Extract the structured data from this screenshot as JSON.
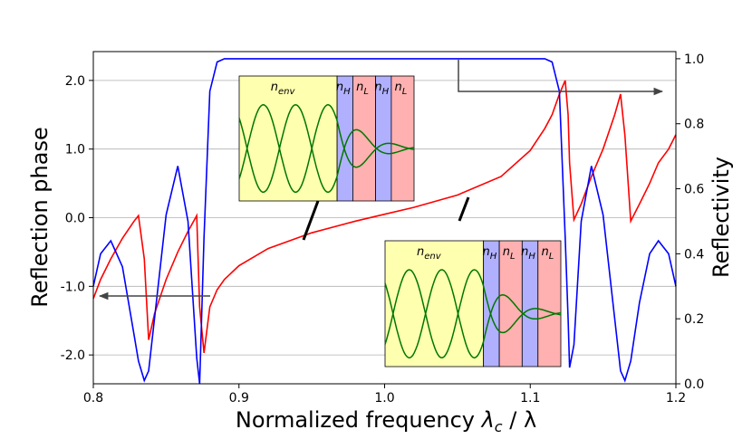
{
  "chart_data": {
    "type": "line",
    "x_label": [
      "Normalized frequency ",
      "λ",
      "c",
      " / λ"
    ],
    "y_label": "Reflection phase",
    "y2_label": "Reflectivity",
    "x": [
      0.8,
      0.805,
      0.812,
      0.82,
      0.828,
      0.831,
      0.835,
      0.838,
      0.842,
      0.85,
      0.858,
      0.865,
      0.871,
      0.873,
      0.876,
      0.88,
      0.885,
      0.89,
      0.9,
      0.92,
      0.95,
      0.98,
      1.0,
      1.02,
      1.05,
      1.08,
      1.1,
      1.11,
      1.115,
      1.12,
      1.124,
      1.126,
      1.127,
      1.13,
      1.135,
      1.142,
      1.15,
      1.158,
      1.162,
      1.165,
      1.169,
      1.175,
      1.182,
      1.188,
      1.195,
      1.2
    ],
    "series": [
      {
        "name": "Reflection phase",
        "color": "#ff0000",
        "axis": "y",
        "values": [
          -1.18,
          -0.9,
          -0.6,
          -0.3,
          -0.05,
          0.03,
          -0.6,
          -1.78,
          -1.4,
          -0.9,
          -0.5,
          -0.2,
          0.03,
          -1.3,
          -1.97,
          -1.3,
          -1.05,
          -0.9,
          -0.7,
          -0.45,
          -0.22,
          -0.05,
          0.05,
          0.15,
          0.33,
          0.6,
          0.98,
          1.3,
          1.5,
          1.8,
          2.0,
          1.5,
          0.8,
          -0.03,
          0.2,
          0.6,
          1.0,
          1.5,
          1.8,
          1.2,
          -0.05,
          0.2,
          0.5,
          0.8,
          1.0,
          1.21
        ]
      },
      {
        "name": "Reflectivity",
        "color": "#0000ff",
        "axis": "y2",
        "values": [
          0.3,
          0.4,
          0.44,
          0.36,
          0.15,
          0.07,
          0.01,
          0.04,
          0.2,
          0.52,
          0.67,
          0.5,
          0.08,
          0.0,
          0.45,
          0.9,
          0.99,
          1.0,
          1.0,
          1.0,
          1.0,
          1.0,
          1.0,
          1.0,
          1.0,
          1.0,
          1.0,
          1.0,
          0.99,
          0.9,
          0.45,
          0.2,
          0.05,
          0.12,
          0.5,
          0.67,
          0.52,
          0.2,
          0.04,
          0.01,
          0.07,
          0.25,
          0.4,
          0.44,
          0.4,
          0.3
        ]
      }
    ],
    "xlim": [
      0.8,
      1.2
    ],
    "xticks": [
      0.8,
      0.9,
      {
        "value": 1,
        "label": "1.0"
      },
      1.1,
      1.2
    ],
    "ylim": [
      -2.42,
      2.42
    ],
    "yticks": [
      {
        "value": -2,
        "label": "-2.0"
      },
      {
        "value": -1,
        "label": "-1.0"
      },
      {
        "value": 0,
        "label": "0.0"
      },
      {
        "value": 1,
        "label": "1.0"
      },
      {
        "value": 2,
        "label": "2.0"
      }
    ],
    "y2lim": [
      0,
      1.022
    ],
    "y2ticks": [
      {
        "value": 0,
        "label": "0.0"
      },
      0.2,
      0.4,
      0.6,
      0.8,
      {
        "value": 1,
        "label": "1.0"
      }
    ],
    "grid": true,
    "insets": [
      {
        "layers": [
          {
            "symbol": "n",
            "sub": "env"
          },
          {
            "symbol": "n",
            "sub": "H"
          },
          {
            "symbol": "n",
            "sub": "L"
          },
          {
            "symbol": "n",
            "sub": "H"
          },
          {
            "symbol": "n",
            "sub": "L"
          }
        ]
      },
      {
        "layers": [
          {
            "symbol": "n",
            "sub": "env"
          },
          {
            "symbol": "n",
            "sub": "H"
          },
          {
            "symbol": "n",
            "sub": "L"
          },
          {
            "symbol": "n",
            "sub": "H"
          },
          {
            "symbol": "n",
            "sub": "L"
          }
        ]
      }
    ]
  }
}
